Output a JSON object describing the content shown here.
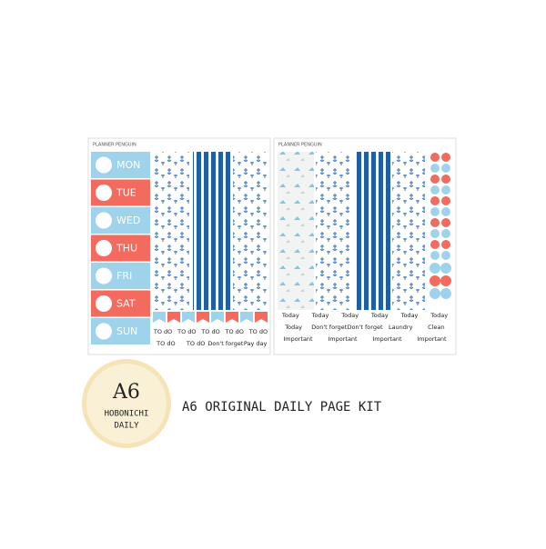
{
  "left_sheet": {
    "brand": "PLANNER PENGUIN",
    "days": [
      "MON",
      "TUE",
      "WED",
      "THU",
      "FRI",
      "SAT",
      "SUN"
    ],
    "rows": [
      [
        "TO dO",
        "TO dO",
        "TO dO",
        "TO dO",
        "TO dO"
      ],
      [
        "TO dO",
        "TO dO",
        "Don't forget",
        "Pay day"
      ]
    ]
  },
  "right_sheet": {
    "brand": "PLANNER PENGUIN",
    "rows": [
      [
        "Today",
        "Today",
        "Today",
        "Today",
        "Today",
        "Today"
      ],
      [
        "Today",
        "Don't forget",
        "Don't forget",
        "Laundry",
        "Clean"
      ],
      [
        "Important",
        "Important",
        "Important",
        "Important"
      ]
    ]
  },
  "badge": {
    "size": "A6",
    "line1": "HOBONICHI",
    "line2": "DAILY"
  },
  "title": "A6 ORIGINAL DAILY PAGE KIT"
}
